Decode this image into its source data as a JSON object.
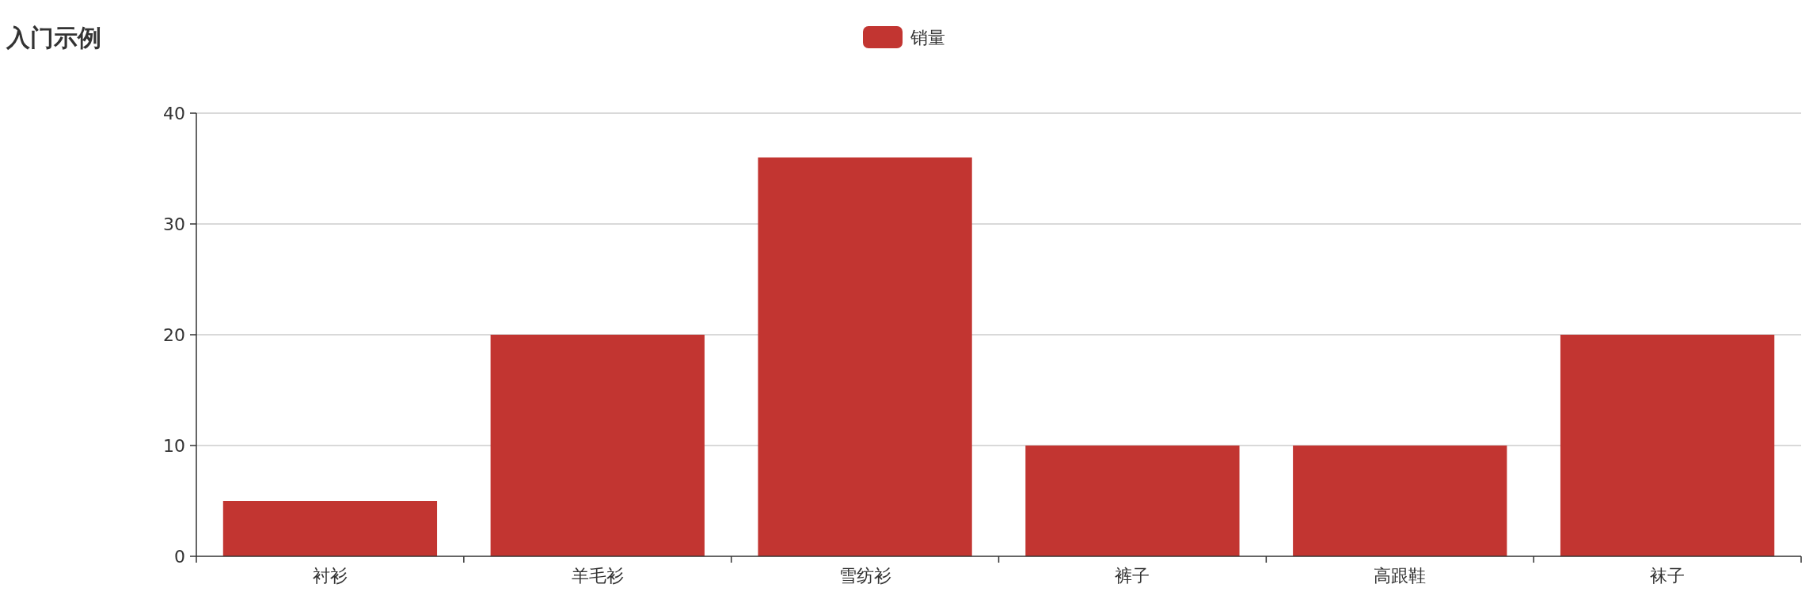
{
  "chart_data": {
    "type": "bar",
    "title": "入门示例",
    "categories": [
      "衬衫",
      "羊毛衫",
      "雪纺衫",
      "裤子",
      "高跟鞋",
      "袜子"
    ],
    "series": [
      {
        "name": "销量",
        "color": "#c23531",
        "values": [
          5,
          20,
          36,
          10,
          10,
          20
        ]
      }
    ],
    "ylim": [
      0,
      40
    ],
    "yticks": [
      0,
      10,
      20,
      30,
      40
    ],
    "grid": "y",
    "legend": "top"
  }
}
